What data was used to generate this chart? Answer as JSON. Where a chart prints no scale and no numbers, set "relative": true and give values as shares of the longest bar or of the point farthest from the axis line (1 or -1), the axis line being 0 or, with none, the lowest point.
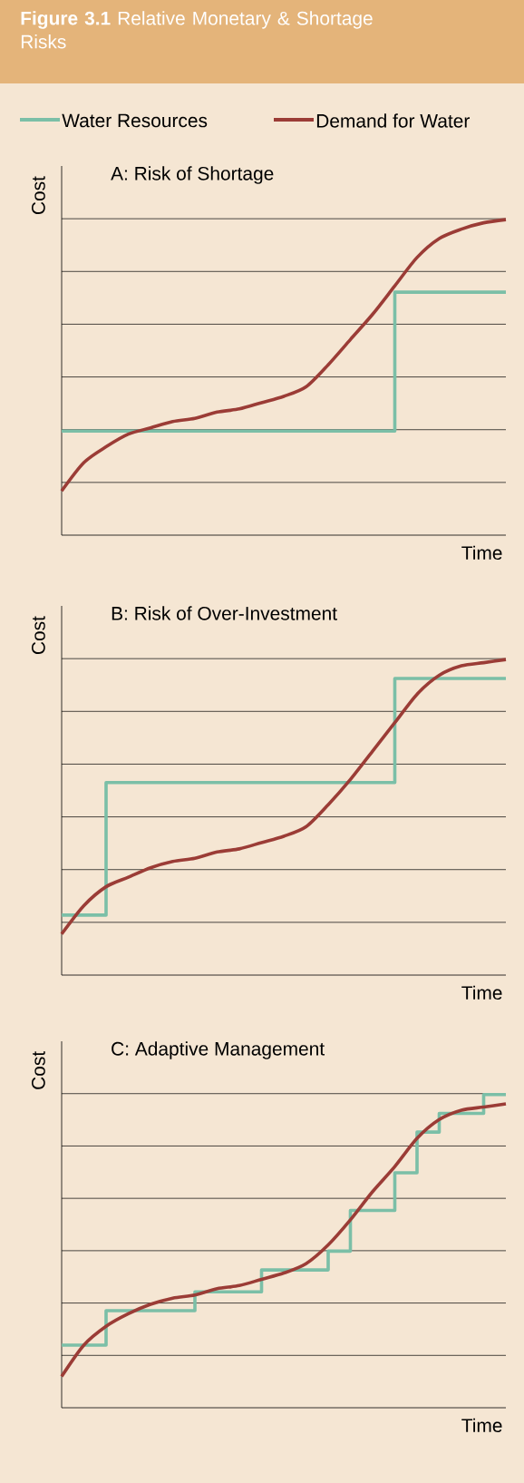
{
  "chart_data": [
    {
      "type": "line",
      "title": "**Figure 3.1** Relative Monetary & Shortage Risks",
      "subtitle": "A:  Risk of Shortage",
      "xlabel": "Time",
      "ylabel": "Cost",
      "relative": true,
      "grid": "y",
      "legend": "top",
      "categories": [
        null,
        null,
        null,
        null,
        null,
        null,
        null,
        null,
        null,
        null,
        null,
        null,
        null,
        null,
        null,
        null,
        null,
        null,
        null,
        null,
        null
      ],
      "series": [
        {
          "name": "Water Resources",
          "type": "step",
          "color": "#7bbfa7",
          "values": [
            0.33,
            0.33,
            0.33,
            0.33,
            0.33,
            0.33,
            0.33,
            0.33,
            0.33,
            0.33,
            0.33,
            0.33,
            0.33,
            0.33,
            0.33,
            0.77,
            0.77,
            0.77,
            0.77,
            0.77,
            0.77
          ]
        },
        {
          "name": "Demand for Water",
          "type": "line",
          "color": "#9b3c36",
          "values": [
            0.14,
            0.23,
            0.28,
            0.32,
            0.34,
            0.36,
            0.37,
            0.39,
            0.4,
            0.42,
            0.44,
            0.47,
            0.54,
            0.62,
            0.7,
            0.79,
            0.88,
            0.94,
            0.97,
            0.99,
            1.0
          ]
        }
      ]
    },
    {
      "type": "line",
      "subtitle": "B:  Risk of Over-Investment",
      "xlabel": "Time",
      "ylabel": "Cost",
      "relative": true,
      "grid": "y",
      "categories": [
        null,
        null,
        null,
        null,
        null,
        null,
        null,
        null,
        null,
        null,
        null,
        null,
        null,
        null,
        null,
        null,
        null,
        null,
        null,
        null,
        null
      ],
      "series": [
        {
          "type": "step",
          "color": "#7bbfa7",
          "values": [
            0.19,
            0.19,
            0.61,
            0.61,
            0.61,
            0.61,
            0.61,
            0.61,
            0.61,
            0.61,
            0.61,
            0.61,
            0.61,
            0.61,
            0.61,
            0.94,
            0.94,
            0.94,
            0.94,
            0.94,
            0.94
          ]
        },
        {
          "type": "line",
          "color": "#9b3c36",
          "values": [
            0.13,
            0.22,
            0.28,
            0.31,
            0.34,
            0.36,
            0.37,
            0.39,
            0.4,
            0.42,
            0.44,
            0.47,
            0.54,
            0.62,
            0.71,
            0.8,
            0.89,
            0.95,
            0.98,
            0.99,
            1.0
          ]
        }
      ]
    },
    {
      "type": "line",
      "subtitle": "C:  Adaptive Management",
      "xlabel": "Time",
      "ylabel": "Cost",
      "relative": true,
      "grid": "y",
      "categories": [
        null,
        null,
        null,
        null,
        null,
        null,
        null,
        null,
        null,
        null,
        null,
        null,
        null,
        null,
        null,
        null,
        null,
        null,
        null,
        null,
        null
      ],
      "series": [
        {
          "type": "step",
          "color": "#7bbfa7",
          "values": [
            0.2,
            0.2,
            0.31,
            0.31,
            0.31,
            0.31,
            0.37,
            0.37,
            0.37,
            0.44,
            0.44,
            0.44,
            0.5,
            0.63,
            0.63,
            0.75,
            0.88,
            0.94,
            0.94,
            1.0,
            1.0
          ]
        },
        {
          "type": "line",
          "color": "#9b3c36",
          "values": [
            0.1,
            0.2,
            0.26,
            0.3,
            0.33,
            0.35,
            0.36,
            0.38,
            0.39,
            0.41,
            0.43,
            0.46,
            0.52,
            0.6,
            0.69,
            0.77,
            0.86,
            0.92,
            0.95,
            0.96,
            0.97
          ]
        }
      ]
    }
  ]
}
